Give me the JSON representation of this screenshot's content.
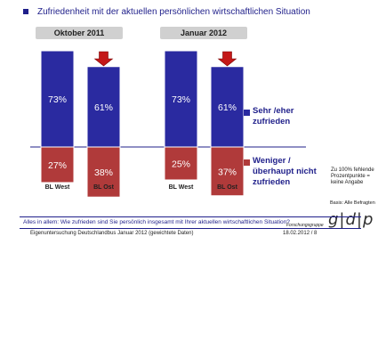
{
  "title": "Zufriedenheit mit der aktuellen persönlichen wirtschaftlichen Situation",
  "chart_data": {
    "type": "bar",
    "stacked": true,
    "panels": [
      {
        "label": "Oktober 2011",
        "categories": [
          "BL West",
          "BL Ost"
        ],
        "series": [
          {
            "name": "Sehr /eher zufrieden",
            "values": [
              73,
              61
            ]
          },
          {
            "name": "Weniger / überhaupt nicht zufrieden",
            "values": [
              27,
              38
            ]
          }
        ]
      },
      {
        "label": "Januar 2012",
        "categories": [
          "BL West",
          "BL Ost"
        ],
        "series": [
          {
            "name": "Sehr /eher zufrieden",
            "values": [
              73,
              61
            ]
          },
          {
            "name": "Weniger / überhaupt nicht zufrieden",
            "values": [
              25,
              37
            ]
          }
        ]
      }
    ],
    "value_suffix": "%",
    "highlight_arrow_category": "BL Ost"
  },
  "legend": {
    "satisfied_lines": [
      "Sehr /eher",
      "zufrieden"
    ],
    "unsatisfied_lines": [
      "Weniger /",
      "überhaupt nicht",
      "zufrieden"
    ]
  },
  "side_note_lines": [
    "Zu 100% fehlende",
    "Prozentpunkte =",
    "keine Angabe"
  ],
  "basic_note": "Basis: Alle Befragten",
  "question": "Alles in allem: Wie zufrieden sind Sie persönlich insgesamt mit Ihrer aktuellen wirtschaftlichen Situation?",
  "source": "Eigenuntersuchung Deutschlandbus Januar 2012 (gewichtete Daten)",
  "date_page": "18.02.2012 / 8",
  "logo_caption": "Forschungsgruppe",
  "logo_text": "g|d|p",
  "colors": {
    "satisfied": "#2a2aa0",
    "unsatisfied": "#b03a3a",
    "arrow": "#c41818",
    "baseline": "#1f1f8a",
    "panel_label_bg": "#d0d0d0"
  }
}
